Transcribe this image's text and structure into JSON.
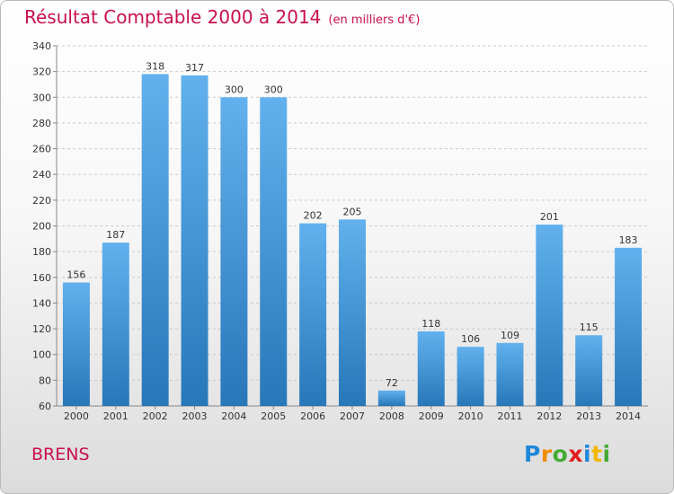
{
  "chart_data": {
    "type": "bar",
    "title": "Résultat Comptable 2000 à 2014",
    "subtitle": "(en milliers d'€)",
    "categories": [
      "2000",
      "2001",
      "2002",
      "2003",
      "2004",
      "2005",
      "2006",
      "2007",
      "2008",
      "2009",
      "2010",
      "2011",
      "2012",
      "2013",
      "2014"
    ],
    "values": [
      156,
      187,
      318,
      317,
      300,
      300,
      202,
      205,
      72,
      118,
      106,
      109,
      201,
      115,
      183
    ],
    "ylim": [
      60,
      340
    ],
    "yticks": [
      60,
      80,
      100,
      120,
      140,
      160,
      180,
      200,
      220,
      240,
      260,
      280,
      300,
      320,
      340
    ],
    "xlabel": "",
    "ylabel": "",
    "grid": true,
    "colors": {
      "bar": "#3d93d8",
      "title": "#c8104c"
    }
  },
  "commune": "BRENS",
  "brand": {
    "letters": [
      "P",
      "r",
      "o",
      "x",
      "i",
      "t",
      "i"
    ]
  }
}
